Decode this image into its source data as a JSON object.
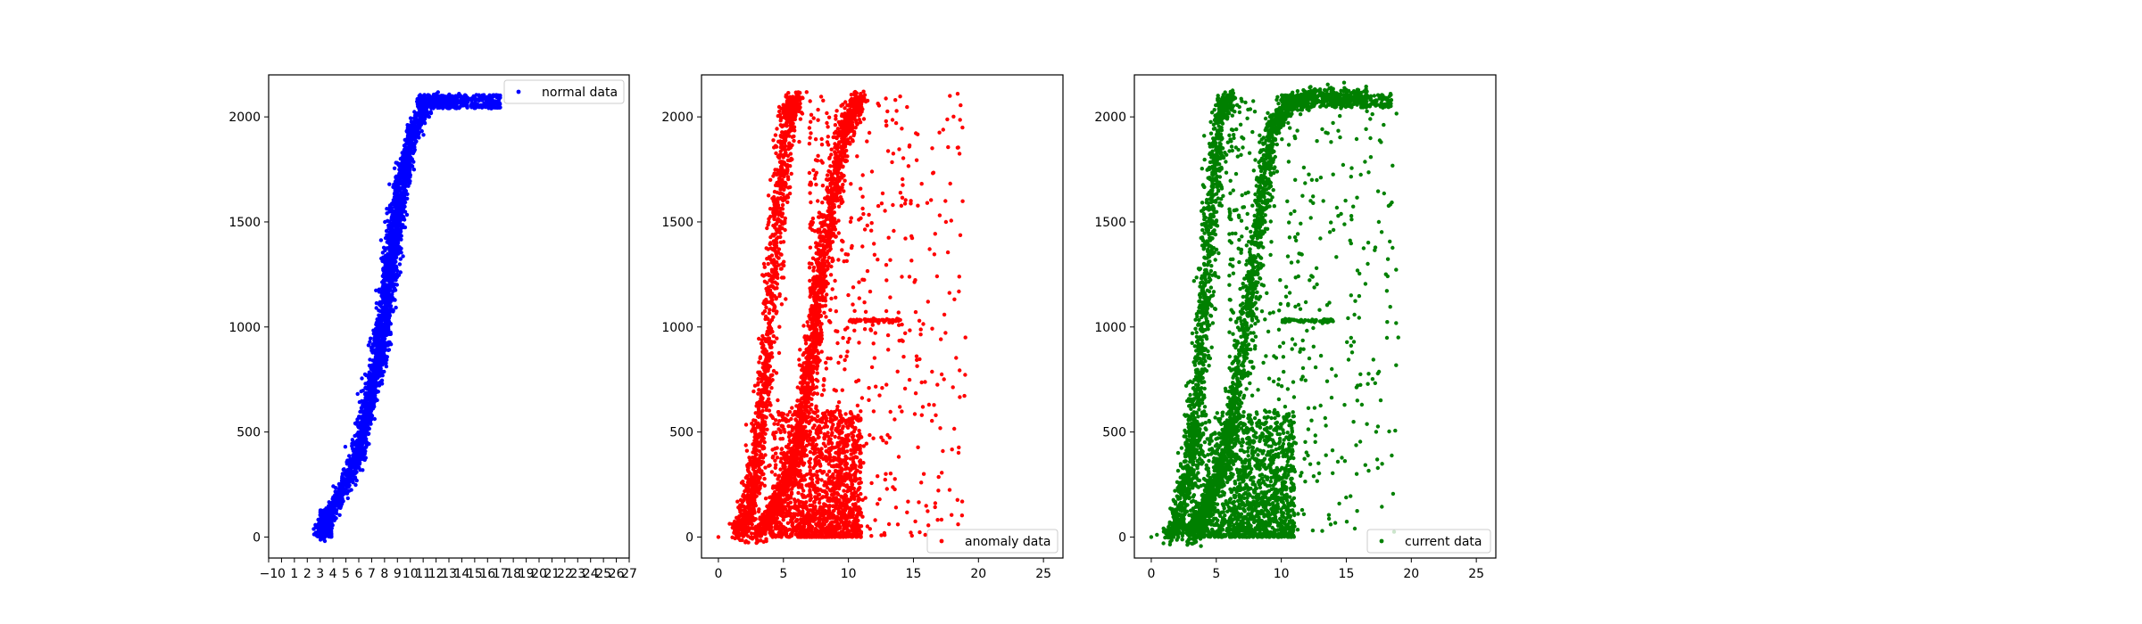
{
  "chart_data": [
    {
      "type": "scatter",
      "title": "",
      "xlabel": "",
      "ylabel": "",
      "xlim": [
        -1,
        27
      ],
      "ylim": [
        -100,
        2200
      ],
      "x_ticks": [
        -1,
        0,
        1,
        2,
        3,
        4,
        5,
        6,
        7,
        8,
        9,
        10,
        11,
        12,
        13,
        14,
        15,
        16,
        17,
        18,
        19,
        20,
        21,
        22,
        23,
        24,
        25,
        26,
        27
      ],
      "x_tick_labels": [
        "−1",
        "0",
        "1",
        "2",
        "3",
        "4",
        "5",
        "6",
        "7",
        "8",
        "9",
        "10",
        "11",
        "12",
        "13",
        "14",
        "15",
        "16",
        "17",
        "18",
        "19",
        "20",
        "21",
        "22",
        "23",
        "24",
        "25",
        "26",
        "27"
      ],
      "y_ticks": [
        0,
        500,
        1000,
        1500,
        2000
      ],
      "y_tick_labels": [
        "0",
        "500",
        "1000",
        "1500",
        "2000"
      ],
      "grid": false,
      "legend_position": "upper-right",
      "series": [
        {
          "name": "normal data",
          "color": "#0000ff",
          "curve": [
            [
              3.0,
              0
            ],
            [
              3.3,
              60
            ],
            [
              3.8,
              120
            ],
            [
              4.5,
              200
            ],
            [
              5.3,
              300
            ],
            [
              6.0,
              420
            ],
            [
              6.8,
              620
            ],
            [
              7.5,
              850
            ],
            [
              8.1,
              1100
            ],
            [
              8.6,
              1350
            ],
            [
              9.1,
              1600
            ],
            [
              9.7,
              1800
            ],
            [
              10.3,
              1950
            ],
            [
              11.2,
              2050
            ],
            [
              12.5,
              2090
            ],
            [
              14.5,
              2100
            ],
            [
              16.5,
              2100
            ]
          ]
        }
      ]
    },
    {
      "type": "scatter",
      "title": "",
      "xlabel": "",
      "ylabel": "",
      "xlim": [
        -1.3,
        26.5
      ],
      "ylim": [
        -100,
        2200
      ],
      "x_ticks": [
        0,
        5,
        10,
        15,
        20,
        25
      ],
      "x_tick_labels": [
        "0",
        "5",
        "10",
        "15",
        "20",
        "25"
      ],
      "y_ticks": [
        0,
        500,
        1000,
        1500,
        2000
      ],
      "y_tick_labels": [
        "0",
        "500",
        "1000",
        "1500",
        "2000"
      ],
      "grid": false,
      "legend_position": "lower-right",
      "series": [
        {
          "name": "anomaly data",
          "color": "#ff0000",
          "bands": [
            [
              [
                1.5,
                0
              ],
              [
                2.2,
                100
              ],
              [
                2.8,
                300
              ],
              [
                3.3,
                550
              ],
              [
                3.8,
                900
              ],
              [
                4.3,
                1300
              ],
              [
                4.8,
                1700
              ],
              [
                5.3,
                2000
              ],
              [
                6.0,
                2100
              ]
            ],
            [
              [
                3.0,
                0
              ],
              [
                4.0,
                100
              ],
              [
                5.2,
                250
              ],
              [
                6.3,
                500
              ],
              [
                7.0,
                800
              ],
              [
                7.6,
                1100
              ],
              [
                8.2,
                1400
              ],
              [
                9.0,
                1700
              ],
              [
                9.8,
                1950
              ],
              [
                10.8,
                2100
              ]
            ]
          ],
          "cluster": [
            [
              4,
              11
            ],
            [
              0,
              600
            ]
          ],
          "scatter_range": [
            [
              7,
              19
            ],
            [
              0,
              2100
            ]
          ],
          "outliers": [
            [
              0,
              0
            ],
            [
              17.8,
              2100
            ],
            [
              18.4,
              2110
            ],
            [
              19,
              950
            ],
            [
              17.5,
              1500
            ],
            [
              16.2,
              630
            ],
            [
              15.8,
              300
            ],
            [
              13.8,
              60
            ]
          ]
        }
      ]
    },
    {
      "type": "scatter",
      "title": "",
      "xlabel": "",
      "ylabel": "",
      "xlim": [
        -1.3,
        26.5
      ],
      "ylim": [
        -100,
        2200
      ],
      "x_ticks": [
        0,
        5,
        10,
        15,
        20,
        25
      ],
      "x_tick_labels": [
        "0",
        "5",
        "10",
        "15",
        "20",
        "25"
      ],
      "y_ticks": [
        0,
        500,
        1000,
        1500,
        2000
      ],
      "y_tick_labels": [
        "0",
        "500",
        "1000",
        "1500",
        "2000"
      ],
      "grid": false,
      "legend_position": "lower-right",
      "series": [
        {
          "name": "current data",
          "color": "#008000",
          "bands": [
            [
              [
                1.5,
                0
              ],
              [
                2.2,
                100
              ],
              [
                2.8,
                300
              ],
              [
                3.3,
                550
              ],
              [
                3.8,
                900
              ],
              [
                4.3,
                1300
              ],
              [
                4.8,
                1700
              ],
              [
                5.3,
                2000
              ],
              [
                6.0,
                2100
              ]
            ],
            [
              [
                3.0,
                0
              ],
              [
                3.6,
                60
              ],
              [
                4.3,
                150
              ],
              [
                5.2,
                300
              ],
              [
                6.0,
                500
              ],
              [
                6.8,
                800
              ],
              [
                7.5,
                1100
              ],
              [
                8.1,
                1400
              ],
              [
                8.7,
                1700
              ],
              [
                9.4,
                1950
              ],
              [
                10.5,
                2060
              ],
              [
                12.5,
                2100
              ],
              [
                16.5,
                2100
              ]
            ]
          ],
          "cluster": [
            [
              3,
              11
            ],
            [
              0,
              600
            ]
          ],
          "scatter_range": [
            [
              6,
              19
            ],
            [
              0,
              2100
            ]
          ],
          "outliers": [
            [
              0,
              0
            ],
            [
              19,
              950
            ],
            [
              17.5,
              1500
            ],
            [
              16.2,
              630
            ],
            [
              15.8,
              300
            ],
            [
              13.8,
              60
            ],
            [
              18.4,
              2110
            ]
          ]
        }
      ]
    }
  ]
}
